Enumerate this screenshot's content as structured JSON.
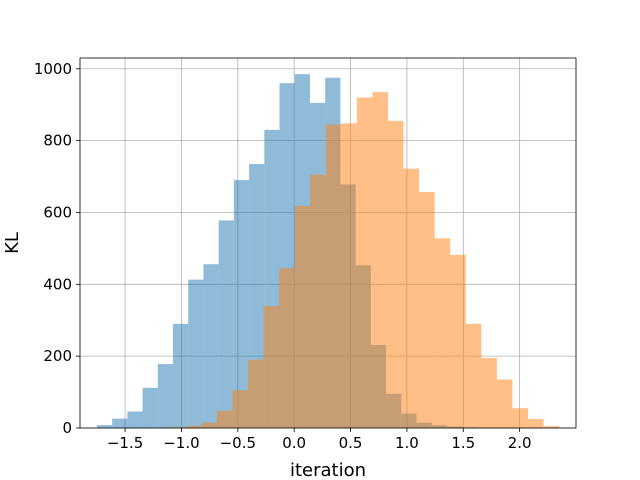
{
  "chart_data": {
    "type": "histogram",
    "title": "",
    "xlabel": "iteration",
    "ylabel": "KL",
    "xlim": [
      -1.9,
      2.5
    ],
    "ylim": [
      0,
      1030
    ],
    "grid": true,
    "legend": "none",
    "x_ticks": [
      {
        "value": -1.5,
        "label": "−1.5"
      },
      {
        "value": -1.0,
        "label": "−1.0"
      },
      {
        "value": -0.5,
        "label": "−0.5"
      },
      {
        "value": 0.0,
        "label": "0.0"
      },
      {
        "value": 0.5,
        "label": "0.5"
      },
      {
        "value": 1.0,
        "label": "1.0"
      },
      {
        "value": 1.5,
        "label": "1.5"
      },
      {
        "value": 2.0,
        "label": "2.0"
      }
    ],
    "y_ticks": [
      {
        "value": 0,
        "label": "0"
      },
      {
        "value": 200,
        "label": "200"
      },
      {
        "value": 400,
        "label": "400"
      },
      {
        "value": 600,
        "label": "600"
      },
      {
        "value": 800,
        "label": "800"
      },
      {
        "value": 1000,
        "label": "1000"
      }
    ],
    "series": [
      {
        "color": "#1f77b4",
        "opacity": 0.5,
        "bin_edges": [
          -1.75,
          -1.615,
          -1.48,
          -1.345,
          -1.21,
          -1.075,
          -0.94,
          -0.805,
          -0.67,
          -0.535,
          -0.4,
          -0.265,
          -0.13,
          0.005,
          0.14,
          0.275,
          0.41,
          0.545,
          0.68,
          0.815,
          0.95,
          1.085,
          1.22,
          1.355,
          1.49,
          1.625
        ],
        "counts": [
          8,
          26,
          46,
          112,
          178,
          290,
          413,
          456,
          578,
          690,
          735,
          830,
          960,
          985,
          905,
          975,
          678,
          453,
          231,
          95,
          40,
          15,
          8,
          4,
          2
        ]
      },
      {
        "color": "#ff7f0e",
        "opacity": 0.5,
        "bin_edges": [
          -1.1,
          -0.962,
          -0.824,
          -0.686,
          -0.548,
          -0.41,
          -0.272,
          -0.134,
          0.004,
          0.142,
          0.28,
          0.418,
          0.556,
          0.694,
          0.832,
          0.97,
          1.108,
          1.246,
          1.384,
          1.522,
          1.66,
          1.798,
          1.936,
          2.074,
          2.212,
          2.35
        ],
        "counts": [
          2,
          6,
          15,
          48,
          105,
          190,
          340,
          445,
          618,
          705,
          845,
          848,
          920,
          935,
          855,
          722,
          657,
          528,
          482,
          290,
          195,
          135,
          55,
          25,
          5
        ]
      }
    ]
  }
}
